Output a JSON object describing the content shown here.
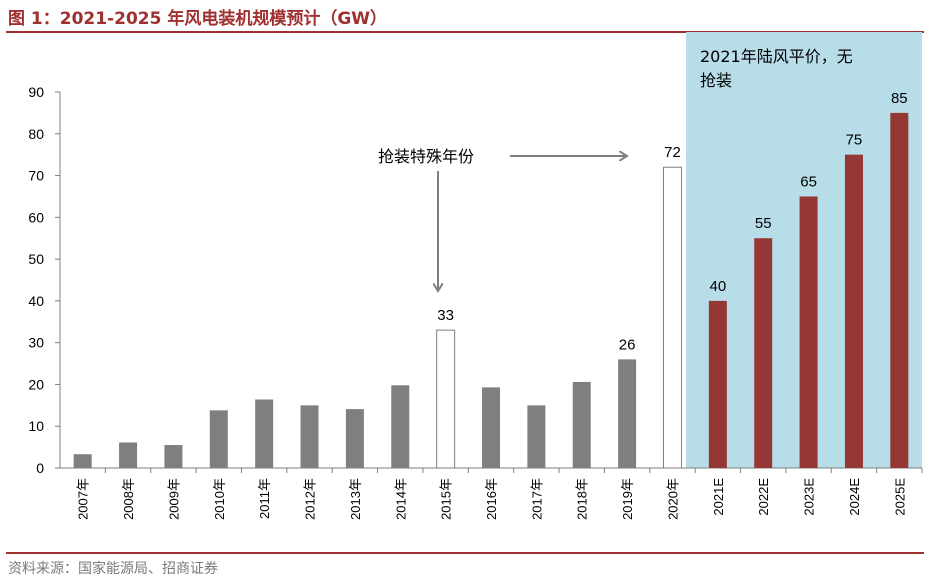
{
  "title": "图 1：2021-2025 年风电装机规模预计（GW）",
  "source": "资料来源：国家能源局、招商证券",
  "colors": {
    "historical": "#7f7f7f",
    "rush": "#ffffff",
    "forecast": "#953735",
    "highlight_bg": "#b7dde8",
    "accent": "#a0302f"
  },
  "chart_data": {
    "type": "bar",
    "categories": [
      "2007年",
      "2008年",
      "2009年",
      "2010年",
      "2011年",
      "2012年",
      "2013年",
      "2014年",
      "2015年",
      "2016年",
      "2017年",
      "2018年",
      "2019年",
      "2020年",
      "2021E",
      "2022E",
      "2023E",
      "2024E",
      "2025E"
    ],
    "values": [
      3.3,
      6.1,
      5.5,
      13.8,
      16.4,
      15.0,
      14.1,
      19.8,
      33,
      19.3,
      15.0,
      20.6,
      26,
      72,
      40,
      55,
      65,
      75,
      85
    ],
    "bar_styles": [
      "historical",
      "historical",
      "historical",
      "historical",
      "historical",
      "historical",
      "historical",
      "historical",
      "rush",
      "historical",
      "historical",
      "historical",
      "historical",
      "rush",
      "forecast",
      "forecast",
      "forecast",
      "forecast",
      "forecast"
    ],
    "data_labels": [
      "",
      "",
      "",
      "",
      "",
      "",
      "",
      "",
      "33",
      "",
      "",
      "",
      "26",
      "72",
      "40",
      "55",
      "65",
      "75",
      "85"
    ],
    "ylim": [
      0,
      90
    ],
    "yticks": [
      0,
      10,
      20,
      30,
      40,
      50,
      60,
      70,
      80,
      90
    ],
    "grid": false,
    "annotations": {
      "rush_note": "抢装特殊年份",
      "forecast_note_line1": "2021年陆风平价，无",
      "forecast_note_line2": "抢装"
    }
  }
}
